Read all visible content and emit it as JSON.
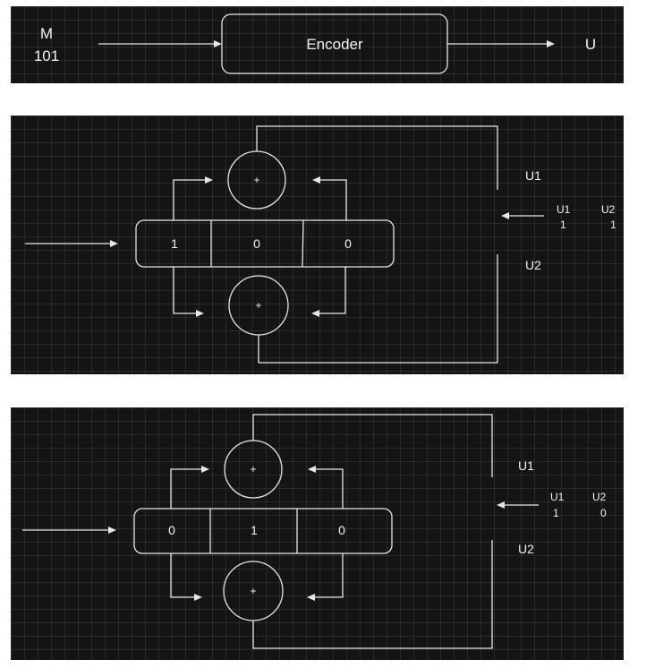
{
  "block": {
    "input_label": "M",
    "input_value": "101",
    "encoder_label": "Encoder",
    "output_label": "U"
  },
  "diagram_1": {
    "register": [
      "1",
      "0",
      "0"
    ],
    "adder_symbol": "+",
    "u1_label": "U1",
    "u2_label": "U2",
    "output_header_u1": "U1",
    "output_header_u2": "U2",
    "output_value_u1": "1",
    "output_value_u2": "1"
  },
  "diagram_2": {
    "register": [
      "0",
      "1",
      "0"
    ],
    "adder_symbol": "+",
    "u1_label": "U1",
    "u2_label": "U2",
    "output_header_u1": "U1",
    "output_header_u2": "U2",
    "output_value_u1": "1",
    "output_value_u2": "0"
  },
  "colors": {
    "panel_background": "#141414",
    "line": "#e6e6e6",
    "text": "#f2f2f2"
  }
}
